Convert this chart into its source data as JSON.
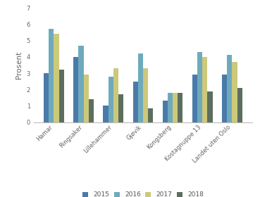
{
  "categories": [
    "Hamar",
    "Ringsaker",
    "Lillehammer",
    "Gjøvik",
    "Kongsberg",
    "Kostagnuppe 13",
    "Landet uten Oslo"
  ],
  "series": {
    "2015": [
      3.0,
      4.0,
      1.0,
      2.5,
      1.3,
      2.9,
      2.9
    ],
    "2016": [
      5.7,
      4.7,
      2.8,
      4.2,
      1.8,
      4.3,
      4.1
    ],
    "2017": [
      5.4,
      2.9,
      3.3,
      3.3,
      1.8,
      4.0,
      3.7
    ],
    "2018": [
      3.2,
      1.4,
      1.7,
      0.85,
      1.8,
      1.9,
      2.1
    ]
  },
  "colors": {
    "2015": "#4a7aaa",
    "2016": "#6faabc",
    "2017": "#ccc97a",
    "2018": "#5c6e5e"
  },
  "ylabel": "Prosent",
  "ylim": [
    0,
    7
  ],
  "yticks": [
    0,
    1,
    2,
    3,
    4,
    5,
    6,
    7
  ],
  "legend_labels": [
    "2015",
    "2016",
    "2017",
    "2018"
  ],
  "bar_width": 0.17,
  "background_color": "#ffffff",
  "tick_label_fontsize": 6.0,
  "ylabel_fontsize": 7.5,
  "legend_fontsize": 6.5
}
